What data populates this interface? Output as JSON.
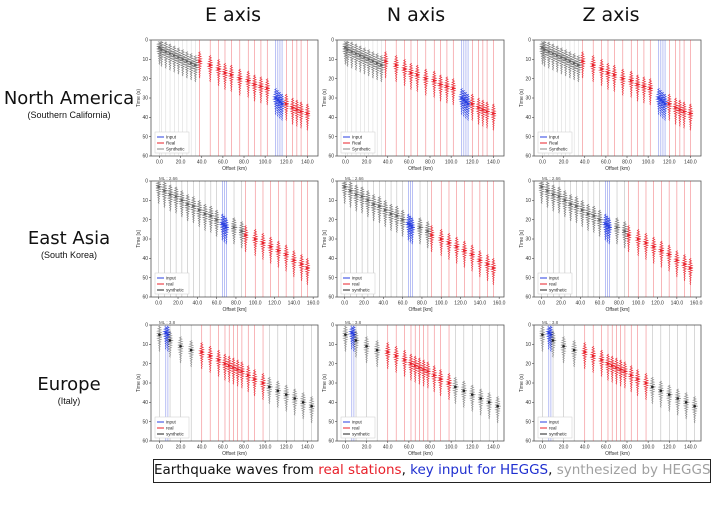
{
  "columns": [
    "E axis",
    "N axis",
    "Z axis"
  ],
  "regions": [
    {
      "name": "North America",
      "sub": "(Southern California)"
    },
    {
      "name": "East Asia",
      "sub": "(South Korea)"
    },
    {
      "name": "Europe",
      "sub": "(Italy)"
    }
  ],
  "caption": {
    "prefix": "Earthquake waves from ",
    "real": "real stations",
    "sep1": ", ",
    "key": "key input for HEGGS",
    "sep2": ", ",
    "synth": "synthesized by HEGGS"
  },
  "colors": {
    "input": "#2a3fe0",
    "real": "#e8202a",
    "synthetic": "#888888",
    "caption_real": "#e8202a",
    "caption_key": "#1f2fd0",
    "caption_synth": "#a0a0a0"
  },
  "chart_data": [
    {
      "type": "scatter",
      "region": "North America",
      "xlabel": "Offset (km)",
      "ylabel": "Time (s)",
      "xticks": [
        0.0,
        20.0,
        40.0,
        60.0,
        80.0,
        100.0,
        120.0,
        140.0
      ],
      "xticklabels": [
        "0.0",
        "20.0",
        "40.0",
        "60.0",
        "80.0",
        "100.0",
        "120.0",
        "140.0"
      ],
      "yticks": [
        0,
        10,
        20,
        30,
        40,
        50,
        60
      ],
      "xlim": [
        -8,
        150
      ],
      "ylim": [
        0,
        60
      ],
      "magnitude_label": "",
      "legend": [
        "Input",
        "Real",
        "Synthetic"
      ],
      "legend_colors": [
        "#2a3fe0",
        "#e8202a",
        "#888888"
      ],
      "series": [
        {
          "name": "Input",
          "x": [
            110,
            112,
            114,
            116
          ],
          "y": [
            30,
            31,
            32,
            33
          ]
        },
        {
          "name": "Real",
          "x": [
            38,
            48,
            56,
            62,
            68,
            76,
            84,
            90,
            96,
            102,
            120,
            126,
            130,
            134,
            140
          ],
          "y": [
            11,
            13,
            15,
            17,
            18,
            20,
            21,
            23,
            24,
            25,
            33,
            35,
            36,
            37,
            38
          ]
        },
        {
          "name": "Synthetic",
          "x": [
            0,
            2,
            6,
            10,
            14,
            18,
            22,
            26,
            30,
            34
          ],
          "y": [
            4,
            5,
            6,
            7,
            8,
            9,
            10,
            11,
            12,
            13
          ]
        }
      ]
    },
    {
      "type": "scatter",
      "region": "East Asia",
      "xlabel": "Offset [km]",
      "ylabel": "Time [s]",
      "xticks": [
        0.0,
        20.0,
        40.0,
        60.0,
        80.0,
        100.0,
        120.0,
        140.0,
        160.0
      ],
      "xticklabels": [
        "0.0",
        "20.0",
        "40.0",
        "60.0",
        "80.0",
        "100.0",
        "120.0",
        "140.0",
        "160.0"
      ],
      "yticks": [
        0,
        10,
        20,
        30,
        40,
        50,
        60
      ],
      "xlim": [
        -8,
        165
      ],
      "ylim": [
        0,
        60
      ],
      "magnitude_label": "ML : 2.66",
      "legend": [
        "input",
        "real",
        "synthetic"
      ],
      "legend_colors": [
        "#2a3fe0",
        "#e8202a",
        "#222222"
      ],
      "series": [
        {
          "name": "input",
          "x": [
            66,
            68,
            70
          ],
          "y": [
            22,
            23,
            24
          ]
        },
        {
          "name": "real",
          "x": [
            90,
            100,
            108,
            116,
            124,
            132,
            140,
            148,
            154
          ],
          "y": [
            28,
            30,
            32,
            34,
            36,
            38,
            41,
            43,
            45
          ]
        },
        {
          "name": "synthetic",
          "x": [
            0,
            6,
            12,
            18,
            24,
            30,
            36,
            42,
            48,
            54,
            60,
            78,
            86
          ],
          "y": [
            3,
            5,
            7,
            8,
            10,
            12,
            13,
            15,
            17,
            18,
            20,
            24,
            26
          ]
        }
      ]
    },
    {
      "type": "scatter",
      "region": "Europe",
      "xlabel": "Offset (km)",
      "ylabel": "Time (s)",
      "xticks": [
        0.0,
        20.0,
        40.0,
        60.0,
        80.0,
        100.0,
        120.0,
        140.0
      ],
      "xticklabels": [
        "0.0",
        "20.0",
        "40.0",
        "60.0",
        "80.0",
        "100.0",
        "120.0",
        "140.0"
      ],
      "yticks": [
        0,
        10,
        20,
        30,
        40,
        50,
        60
      ],
      "xlim": [
        -8,
        150
      ],
      "ylim": [
        0,
        60
      ],
      "magnitude_label": "ML : 3.8",
      "legend": [
        "input",
        "real",
        "synthetic"
      ],
      "legend_colors": [
        "#2a3fe0",
        "#e8202a",
        "#222222"
      ],
      "series": [
        {
          "name": "input",
          "x": [
            6,
            8
          ],
          "y": [
            4,
            5
          ]
        },
        {
          "name": "real",
          "x": [
            40,
            48,
            56,
            62,
            66,
            70,
            74,
            78,
            84,
            90,
            98
          ],
          "y": [
            14,
            16,
            18,
            20,
            21,
            22,
            23,
            24,
            26,
            28,
            30
          ]
        },
        {
          "name": "synthetic",
          "x": [
            0,
            10,
            20,
            30,
            104,
            112,
            120,
            128,
            136,
            144
          ],
          "y": [
            5,
            8,
            11,
            13,
            32,
            34,
            36,
            38,
            40,
            42
          ]
        }
      ]
    }
  ]
}
